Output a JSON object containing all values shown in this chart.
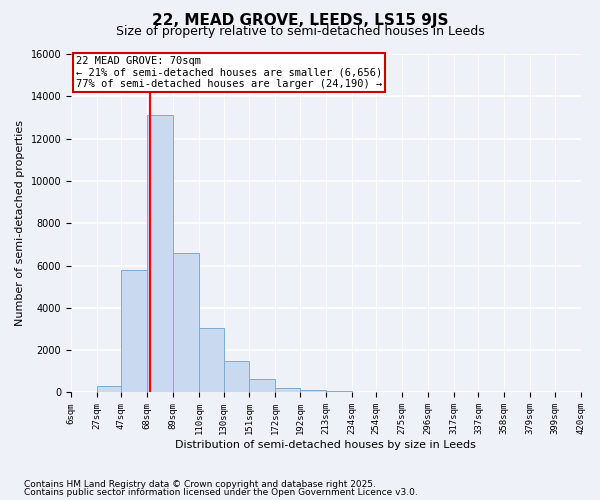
{
  "title": "22, MEAD GROVE, LEEDS, LS15 9JS",
  "subtitle": "Size of property relative to semi-detached houses in Leeds",
  "xlabel": "Distribution of semi-detached houses by size in Leeds",
  "ylabel": "Number of semi-detached properties",
  "bin_edges": [
    6,
    27,
    47,
    68,
    89,
    110,
    130,
    151,
    172,
    192,
    213,
    234,
    254,
    275,
    296,
    317,
    337,
    358,
    379,
    399,
    420
  ],
  "bar_heights": [
    0,
    300,
    5800,
    13100,
    6600,
    3050,
    1500,
    650,
    200,
    100,
    50,
    20,
    10,
    5,
    5,
    5,
    0,
    0,
    0,
    0
  ],
  "bar_color": "#c9daf0",
  "bar_edge_color": "#7bacd4",
  "red_line_x": 70,
  "ylim": [
    0,
    16000
  ],
  "yticks": [
    0,
    2000,
    4000,
    6000,
    8000,
    10000,
    12000,
    14000,
    16000
  ],
  "annotation_title": "22 MEAD GROVE: 70sqm",
  "annotation_line1": "← 21% of semi-detached houses are smaller (6,656)",
  "annotation_line2": "77% of semi-detached houses are larger (24,190) →",
  "annotation_box_color": "#ffffff",
  "annotation_box_edge": "#cc0000",
  "footnote1": "Contains HM Land Registry data © Crown copyright and database right 2025.",
  "footnote2": "Contains public sector information licensed under the Open Government Licence v3.0.",
  "background_color": "#eef2f8",
  "grid_color": "#ffffff",
  "title_fontsize": 11,
  "subtitle_fontsize": 9,
  "axis_label_fontsize": 8,
  "tick_fontsize": 7,
  "annotation_fontsize": 7.5,
  "footnote_fontsize": 6.5
}
